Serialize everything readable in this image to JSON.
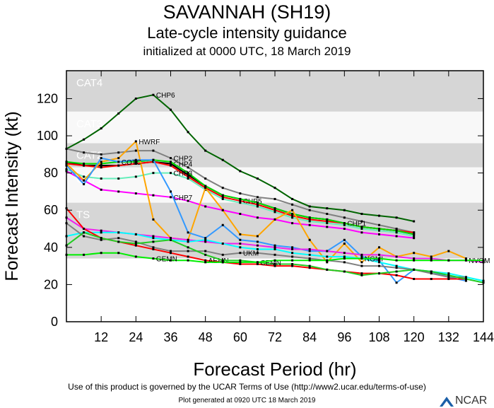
{
  "header": {
    "title": "SAVANNAH (SH19)",
    "subtitle": "Late-cycle intensity guidance",
    "init": "initialized at 0000 UTC, 18 March 2019"
  },
  "footer": {
    "terms": "Use of this product is governed by the UCAR Terms of Use (http://www2.ucar.edu/terms-of-use)",
    "generated": "Plot generated at 0920 UTC  18 March 2019",
    "logo": "NCAR"
  },
  "chart_data": {
    "type": "line",
    "xlabel": "Forecast Period (hr)",
    "ylabel": "Forecast Intensity (kt)",
    "xlim": [
      0,
      144
    ],
    "ylim": [
      0,
      135
    ],
    "xticks": [
      12,
      24,
      36,
      48,
      60,
      72,
      84,
      96,
      108,
      120,
      132,
      144
    ],
    "yticks": [
      0,
      20,
      40,
      60,
      80,
      100,
      120
    ],
    "bands": [
      {
        "label": "CAT4",
        "from": 113,
        "to": 135,
        "color": "#d6d6d6"
      },
      {
        "label": "CAT3",
        "from": 96,
        "to": 113,
        "color": "#f8f8f8"
      },
      {
        "label": "CAT2",
        "from": 83,
        "to": 96,
        "color": "#d6d6d6"
      },
      {
        "label": "CAT1",
        "from": 64,
        "to": 83,
        "color": "#f8f8f8"
      },
      {
        "label": "TS",
        "from": 34,
        "to": 64,
        "color": "#d6d6d6"
      }
    ],
    "x_step_hours": 6,
    "series": [
      {
        "name": "CHP6",
        "color": "#006400",
        "label_at": 5,
        "values": [
          93,
          98,
          104,
          112,
          120,
          122,
          114,
          102,
          92,
          87,
          81,
          77,
          72,
          66,
          62,
          61,
          60,
          58,
          57,
          56,
          54
        ]
      },
      {
        "name": "CHP2",
        "color": "#808080",
        "label_at": 6,
        "values": [
          93,
          91,
          90,
          91,
          92,
          92,
          88,
          83,
          77,
          72,
          69,
          67,
          66,
          63,
          60,
          58,
          56,
          54,
          52,
          50,
          48
        ]
      },
      {
        "name": "CHP4",
        "color": "#000000",
        "label_at": 6,
        "values": [
          86,
          84,
          84,
          84,
          85,
          86,
          85,
          79,
          73,
          68,
          66,
          64,
          61,
          58,
          56,
          55,
          53,
          51,
          50,
          49,
          47
        ]
      },
      {
        "name": "CHP5",
        "color": "#ff0000",
        "label_at": 10,
        "values": [
          85,
          84,
          83,
          84,
          85,
          86,
          84,
          78,
          72,
          67,
          65,
          63,
          60,
          57,
          55,
          54,
          53,
          51,
          50,
          49,
          48
        ]
      },
      {
        "name": "CHP1",
        "color": "#00dd00",
        "label_at": 16,
        "values": [
          86,
          85,
          85,
          86,
          86,
          87,
          86,
          80,
          73,
          68,
          66,
          64,
          61,
          58,
          56,
          55,
          53,
          51,
          50,
          49,
          47
        ]
      },
      {
        "name": "CHP3",
        "color": "#66eebb",
        "label_at": 6,
        "values": [
          82,
          78,
          77,
          77,
          78,
          80,
          80,
          77,
          71,
          66,
          64,
          62,
          59,
          56,
          54,
          53,
          52,
          50,
          49,
          48,
          46
        ]
      },
      {
        "name": "CHP7",
        "color": "#ff00ff",
        "label_at": 6,
        "values": [
          81,
          76,
          71,
          70,
          69,
          68,
          67,
          65,
          62,
          60,
          58,
          56,
          55,
          53,
          52,
          51,
          50,
          48,
          47,
          46,
          45
        ]
      },
      {
        "name": "HWRF",
        "color": "#ffa500",
        "label_at": 4,
        "values": [
          85,
          76,
          86,
          88,
          97,
          55,
          45,
          44,
          72,
          60,
          47,
          46,
          55,
          60,
          44,
          32,
          42,
          32,
          40,
          35,
          37,
          35,
          38,
          34
        ]
      },
      {
        "name": "COTC",
        "color": "#3399ff",
        "label_at": 3,
        "values": [
          84,
          74,
          88,
          86,
          87,
          87,
          70,
          48,
          45,
          52,
          44,
          43,
          41,
          40,
          38,
          38,
          44,
          35,
          33,
          21,
          28,
          27,
          24,
          22
        ]
      },
      {
        "name": "NVGM",
        "color": "#ee22ee",
        "label_at": 23,
        "values": [
          56,
          50,
          49,
          48,
          47,
          46,
          45,
          44,
          43,
          42,
          42,
          41,
          40,
          39,
          39,
          38,
          37,
          36,
          36,
          35,
          34,
          34,
          33,
          33,
          32
        ]
      },
      {
        "name": "NGMI",
        "color": "#00ffff",
        "label_at": 17,
        "values": [
          46,
          48,
          48,
          48,
          47,
          45,
          44,
          43,
          44,
          42,
          40,
          39,
          39,
          37,
          36,
          35,
          35,
          34,
          32,
          30,
          28,
          27,
          26,
          24,
          22
        ]
      },
      {
        "name": "UKM",
        "color": "#808080",
        "label_at": 10,
        "values": [
          53,
          46,
          44,
          45,
          43,
          40,
          38,
          38,
          38,
          36,
          37,
          37,
          36,
          35,
          34,
          33,
          32,
          30,
          30,
          29,
          28,
          26,
          24,
          24
        ]
      },
      {
        "name": "AEMN",
        "color": "#ff0000",
        "label_at": 8,
        "values": [
          61,
          50,
          45,
          43,
          41,
          39,
          37,
          35,
          33,
          32,
          31,
          31,
          30,
          30,
          29,
          28,
          27,
          26,
          26,
          25,
          23,
          23,
          23,
          23
        ]
      },
      {
        "name": "CEMN",
        "color": "#22cc22",
        "label_at": 11,
        "values": [
          41,
          48,
          45,
          43,
          42,
          43,
          44,
          40,
          36,
          33,
          33,
          32,
          31,
          31,
          30,
          28,
          27,
          25,
          26,
          27,
          28,
          27,
          25,
          23,
          21
        ]
      },
      {
        "name": "GEMN",
        "color": "#00ee00",
        "label_at": 5,
        "values": [
          36,
          36,
          37,
          37,
          35,
          34,
          33,
          33,
          32,
          32,
          32,
          32,
          33,
          33,
          33,
          33,
          34,
          34,
          34,
          33,
          33,
          33,
          33,
          33,
          33
        ]
      }
    ]
  }
}
